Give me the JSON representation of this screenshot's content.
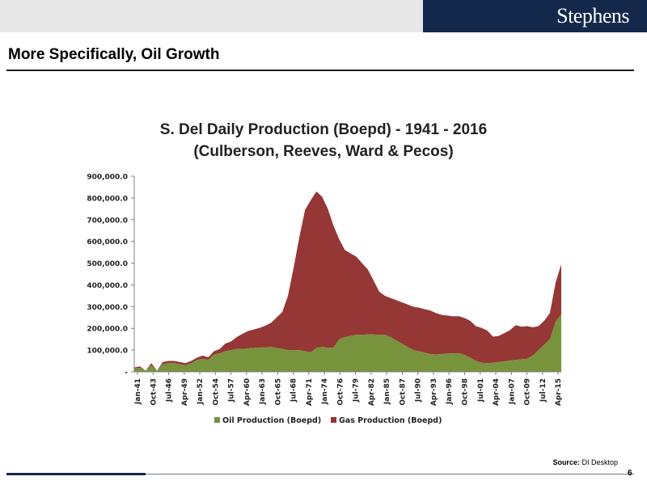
{
  "header": {
    "logo_text": "Stephens"
  },
  "page": {
    "title": "More Specifically, Oil Growth",
    "number": "6"
  },
  "source": {
    "label": "Source:",
    "text": "DI Desktop"
  },
  "colors": {
    "oil": "#77933c",
    "gas": "#953735",
    "logo_bg": "#13284b"
  },
  "chart_data": {
    "type": "area",
    "stacked": true,
    "title": "S. Del Daily Production (Boepd) - 1941 - 2016",
    "subtitle": "(Culberson, Reeves, Ward & Pecos)",
    "xlabel": "",
    "ylabel": "",
    "ylim": [
      0,
      900000
    ],
    "y_ticks": [
      0,
      100000,
      200000,
      300000,
      400000,
      500000,
      600000,
      700000,
      800000,
      900000
    ],
    "y_tick_labels": [
      "-",
      "100,000.0",
      "200,000.0",
      "300,000.0",
      "400,000.0",
      "500,000.0",
      "600,000.0",
      "700,000.0",
      "800,000.0",
      "900,000.0"
    ],
    "x_tick_labels": [
      "Jan-41",
      "Oct-43",
      "Jul-46",
      "Apr-49",
      "Jan-52",
      "Oct-54",
      "Jul-57",
      "Apr-60",
      "Jan-63",
      "Oct-65",
      "Jul-68",
      "Apr-71",
      "Jan-74",
      "Oct-76",
      "Jul-79",
      "Apr-82",
      "Jan-85",
      "Oct-87",
      "Jul-90",
      "Apr-93",
      "Jan-96",
      "Oct-98",
      "Jul-01",
      "Apr-04",
      "Jan-07",
      "Oct-09",
      "Jul-12",
      "Apr-15"
    ],
    "grid": false,
    "legend_position": "bottom",
    "x": [
      "Jan-41",
      "Jan-42",
      "Jan-43",
      "Jan-44",
      "Jan-45",
      "Jan-46",
      "Jan-47",
      "Jan-48",
      "Jan-49",
      "Jan-50",
      "Jan-51",
      "Jan-52",
      "Jan-53",
      "Jan-54",
      "Jan-55",
      "Jan-56",
      "Jan-57",
      "Jan-58",
      "Jan-59",
      "Jan-60",
      "Jan-61",
      "Jan-62",
      "Jan-63",
      "Jan-64",
      "Jan-65",
      "Jan-66",
      "Jan-67",
      "Jan-68",
      "Jan-69",
      "Jan-70",
      "Jan-71",
      "Jan-72",
      "Jan-73",
      "Jan-74",
      "Jan-75",
      "Jan-76",
      "Jan-77",
      "Jan-78",
      "Jan-79",
      "Jan-80",
      "Jan-81",
      "Jan-82",
      "Jan-83",
      "Jan-84",
      "Jan-85",
      "Jan-86",
      "Jan-87",
      "Jan-88",
      "Jan-89",
      "Jan-90",
      "Jan-91",
      "Jan-92",
      "Jan-93",
      "Jan-94",
      "Jan-95",
      "Jan-96",
      "Jan-97",
      "Jan-98",
      "Jan-99",
      "Jan-00",
      "Jan-01",
      "Jan-02",
      "Jan-03",
      "Jan-04",
      "Jan-05",
      "Jan-06",
      "Jan-07",
      "Jan-08",
      "Jan-09",
      "Jan-10",
      "Jan-11",
      "Jan-12",
      "Jan-13",
      "Jan-14",
      "Jan-15",
      "Jan-16"
    ],
    "series": [
      {
        "name": "Oil Production (Boepd)",
        "values": [
          15000,
          18000,
          5000,
          30000,
          5000,
          35000,
          40000,
          40000,
          35000,
          30000,
          40000,
          55000,
          60000,
          55000,
          80000,
          85000,
          95000,
          100000,
          105000,
          105000,
          108000,
          110000,
          112000,
          112000,
          115000,
          110000,
          105000,
          100000,
          100000,
          100000,
          95000,
          90000,
          110000,
          115000,
          110000,
          112000,
          150000,
          160000,
          165000,
          170000,
          170000,
          172000,
          172000,
          170000,
          170000,
          160000,
          145000,
          130000,
          115000,
          100000,
          95000,
          88000,
          82000,
          80000,
          82000,
          84000,
          85000,
          86000,
          78000,
          65000,
          50000,
          42000,
          40000,
          42000,
          45000,
          48000,
          52000,
          55000,
          58000,
          60000,
          75000,
          100000,
          125000,
          150000,
          230000,
          265000
        ]
      },
      {
        "name": "Gas Production (Boepd)",
        "values": [
          5000,
          7000,
          0,
          10000,
          0,
          10000,
          10000,
          10000,
          10000,
          10000,
          10000,
          10000,
          15000,
          12000,
          15000,
          20000,
          35000,
          40000,
          55000,
          70000,
          80000,
          85000,
          90000,
          100000,
          110000,
          140000,
          170000,
          250000,
          380000,
          520000,
          650000,
          700000,
          720000,
          690000,
          640000,
          560000,
          460000,
          400000,
          380000,
          360000,
          330000,
          300000,
          250000,
          200000,
          180000,
          180000,
          185000,
          190000,
          195000,
          200000,
          200000,
          200000,
          200000,
          190000,
          180000,
          175000,
          170000,
          170000,
          170000,
          170000,
          160000,
          160000,
          150000,
          120000,
          120000,
          130000,
          140000,
          160000,
          150000,
          150000,
          130000,
          110000,
          110000,
          120000,
          180000,
          230000
        ]
      }
    ]
  }
}
